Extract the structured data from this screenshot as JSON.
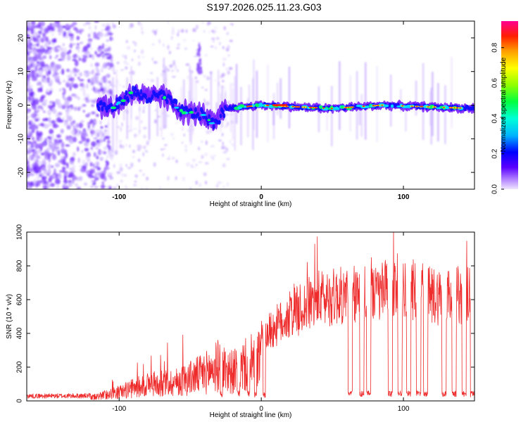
{
  "title": "S197.2026.025.11.23.G03",
  "chart_data": [
    {
      "type": "heatmap",
      "name": "spectrogram",
      "xlabel": "Height of straight line (km)",
      "ylabel": "Frequency (Hz)",
      "xlim": [
        -165,
        150
      ],
      "ylim": [
        -25,
        25
      ],
      "xticks": [
        -100,
        0,
        100
      ],
      "yticks": [
        -20,
        -10,
        0,
        10,
        20
      ],
      "colorbar": {
        "label": "Normalized spectral amplitude",
        "range": [
          0,
          0.95
        ],
        "ticks": [
          0.0,
          0.2,
          0.4,
          0.6,
          0.8
        ]
      },
      "ridge": [
        {
          "x": -115,
          "freq": 0
        },
        {
          "x": -105,
          "freq": -1
        },
        {
          "x": -90,
          "freq": 4
        },
        {
          "x": -80,
          "freq": 2
        },
        {
          "x": -70,
          "freq": 3
        },
        {
          "x": -55,
          "freq": -2
        },
        {
          "x": -40,
          "freq": -3
        },
        {
          "x": -33,
          "freq": -6
        },
        {
          "x": -25,
          "freq": -1
        },
        {
          "x": 0,
          "freq": 0
        },
        {
          "x": 50,
          "freq": -1
        },
        {
          "x": 85,
          "freq": 0
        },
        {
          "x": 150,
          "freq": -1
        }
      ]
    },
    {
      "type": "line",
      "name": "snr",
      "xlabel": "Height of straight line (km)",
      "ylabel": "SNR (10 * v/v)",
      "xlim": [
        -165,
        150
      ],
      "ylim": [
        0,
        1000
      ],
      "xticks": [
        -100,
        0,
        100
      ],
      "yticks": [
        0,
        200,
        400,
        600,
        800,
        1000
      ],
      "series": [
        {
          "name": "SNR",
          "color": "#ee2a2a",
          "envelope": [
            {
              "x": -165,
              "v": 28
            },
            {
              "x": -120,
              "v": 30
            },
            {
              "x": -100,
              "v": 80
            },
            {
              "x": -80,
              "v": 150
            },
            {
              "x": -60,
              "v": 170
            },
            {
              "x": -40,
              "v": 250
            },
            {
              "x": -30,
              "v": 320
            },
            {
              "x": -20,
              "v": 260
            },
            {
              "x": -10,
              "v": 330
            },
            {
              "x": 0,
              "v": 380
            },
            {
              "x": 20,
              "v": 520
            },
            {
              "x": 40,
              "v": 620
            },
            {
              "x": 60,
              "v": 640
            },
            {
              "x": 80,
              "v": 640
            },
            {
              "x": 95,
              "v": 700
            },
            {
              "x": 120,
              "v": 640
            },
            {
              "x": 150,
              "v": 640
            }
          ],
          "dropouts": [
            -28,
            -16,
            -9,
            -4,
            2,
            62,
            70,
            75,
            90,
            97,
            103,
            110,
            115,
            128,
            135,
            142,
            148
          ]
        }
      ]
    }
  ]
}
